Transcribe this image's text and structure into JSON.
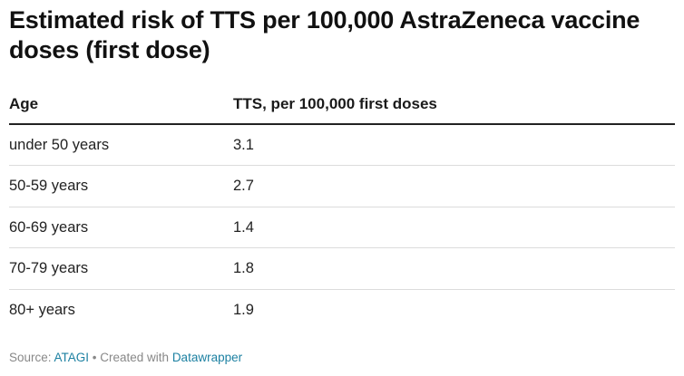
{
  "title": "Estimated risk of TTS per 100,000 AstraZeneca vaccine doses (first dose)",
  "table": {
    "headers": [
      "Age",
      "TTS, per 100,000 first doses"
    ],
    "rows": [
      [
        "under 50 years",
        "3.1"
      ],
      [
        "50-59 years",
        "2.7"
      ],
      [
        "60-69 years",
        "1.4"
      ],
      [
        "70-79 years",
        "1.8"
      ],
      [
        "80+ years",
        "1.9"
      ]
    ]
  },
  "footer": {
    "source_prefix": "Source: ",
    "source_link": "ATAGI",
    "separator": " • Created with ",
    "tool_link": "Datawrapper"
  },
  "chart_data": {
    "type": "table",
    "title": "Estimated risk of TTS per 100,000 AstraZeneca vaccine doses (first dose)",
    "columns": [
      "Age",
      "TTS, per 100,000 first doses"
    ],
    "categories": [
      "under 50 years",
      "50-59 years",
      "60-69 years",
      "70-79 years",
      "80+ years"
    ],
    "values": [
      3.1,
      2.7,
      1.4,
      1.8,
      1.9
    ]
  }
}
